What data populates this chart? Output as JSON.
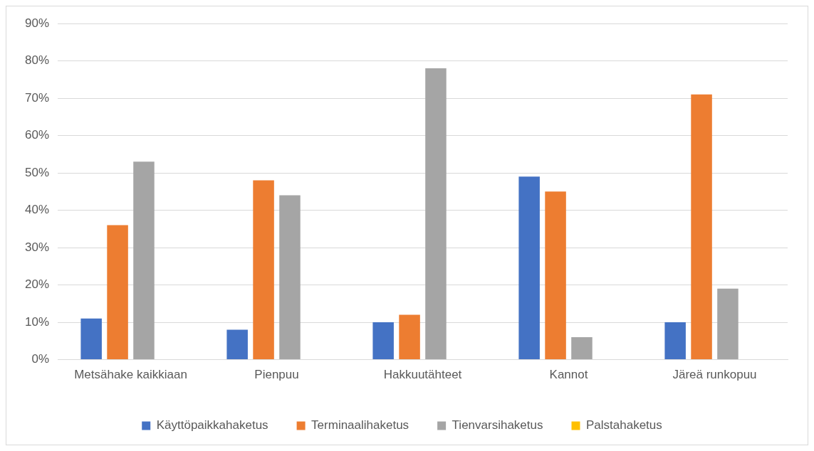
{
  "chart_data": {
    "type": "bar",
    "categories": [
      "Metsähake kaikkiaan",
      "Pienpuu",
      "Hakkuutähteet",
      "Kannot",
      "Järeä runkopuu"
    ],
    "series": [
      {
        "name": "Käyttöpaikkahaketus",
        "color": "#4472c4",
        "values": [
          11,
          8,
          10,
          49,
          10
        ]
      },
      {
        "name": "Terminaalihaketus",
        "color": "#ed7d31",
        "values": [
          36,
          48,
          12,
          45,
          71
        ]
      },
      {
        "name": "Tienvarsihaketus",
        "color": "#a5a5a5",
        "values": [
          53,
          44,
          78,
          6,
          19
        ]
      },
      {
        "name": "Palstahaketus",
        "color": "#ffc000",
        "values": [
          0,
          0,
          0,
          0,
          0
        ]
      }
    ],
    "ylim": [
      0,
      90
    ],
    "yticks": [
      {
        "value": 0,
        "label": "0%"
      },
      {
        "value": 10,
        "label": "10%"
      },
      {
        "value": 20,
        "label": "20%"
      },
      {
        "value": 30,
        "label": "30%"
      },
      {
        "value": 40,
        "label": "40%"
      },
      {
        "value": 50,
        "label": "50%"
      },
      {
        "value": 60,
        "label": "60%"
      },
      {
        "value": 70,
        "label": "70%"
      },
      {
        "value": 80,
        "label": "80%"
      },
      {
        "value": 90,
        "label": "90%"
      }
    ],
    "grid": "y",
    "legend": "bottom"
  }
}
